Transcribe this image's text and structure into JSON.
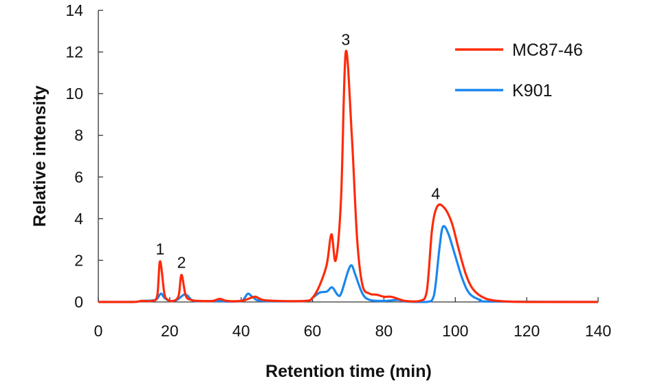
{
  "chart_data": {
    "type": "line",
    "title": "",
    "xlabel": "Retention time (min)",
    "ylabel": "Relative intensity",
    "xlim": [
      0,
      140
    ],
    "ylim": [
      0,
      14
    ],
    "xticks": [
      0,
      20,
      40,
      60,
      80,
      100,
      120,
      140
    ],
    "yticks": [
      0,
      2,
      4,
      6,
      8,
      10,
      12,
      14
    ],
    "grid": false,
    "legend_position": "top-right",
    "annotations": [
      {
        "text": "1",
        "x": 17.3,
        "y": 1.95
      },
      {
        "text": "2",
        "x": 23.3,
        "y": 1.3
      },
      {
        "text": "3",
        "x": 69.3,
        "y": 12.0
      },
      {
        "text": "4",
        "x": 94.5,
        "y": 4.6
      }
    ],
    "series": [
      {
        "name": "MC87-46",
        "color": "#ff2a0a",
        "x": [
          0,
          10,
          12,
          15,
          16.5,
          17.3,
          18.5,
          19.5,
          21,
          22.5,
          23.3,
          24.5,
          26,
          28,
          32,
          34,
          36,
          40,
          42,
          44,
          46,
          50,
          58,
          60,
          62,
          64,
          65.3,
          66.5,
          68,
          69.3,
          71,
          72.5,
          74,
          76,
          78,
          80,
          82,
          84,
          86,
          90,
          92,
          93.5,
          95,
          97,
          99,
          101,
          103,
          105,
          108,
          112,
          120,
          140
        ],
        "y": [
          0,
          0,
          0.05,
          0.05,
          0.3,
          1.95,
          0.4,
          0.1,
          0.05,
          0.3,
          1.3,
          0.3,
          0.1,
          0.05,
          0.05,
          0.15,
          0.05,
          0.05,
          0.15,
          0.25,
          0.1,
          0.05,
          0.05,
          0.2,
          0.8,
          1.8,
          3.25,
          2.0,
          5.0,
          12.0,
          8.0,
          3.0,
          0.8,
          0.4,
          0.35,
          0.25,
          0.25,
          0.15,
          0.05,
          0.05,
          0.5,
          3.5,
          4.6,
          4.5,
          3.8,
          2.5,
          1.3,
          0.6,
          0.2,
          0.05,
          0,
          0
        ]
      },
      {
        "name": "K901",
        "color": "#1a86ee",
        "x": [
          0,
          10,
          12,
          16,
          17.5,
          18.5,
          20,
          22,
          24,
          25,
          27,
          34,
          36,
          40,
          41,
          42,
          43.5,
          46,
          58,
          60,
          62,
          64,
          65.5,
          67,
          68,
          70,
          71,
          72,
          74,
          76,
          80,
          84,
          86,
          92,
          94,
          95.5,
          96.5,
          98,
          100,
          102,
          104,
          107,
          110,
          140
        ],
        "y": [
          0,
          0,
          0.05,
          0.1,
          0.4,
          0.2,
          0.05,
          0.1,
          0.35,
          0.3,
          0.05,
          0.05,
          0.02,
          0.05,
          0.2,
          0.4,
          0.2,
          0.05,
          0.05,
          0.2,
          0.45,
          0.5,
          0.7,
          0.35,
          0.4,
          1.5,
          1.75,
          1.3,
          0.4,
          0.1,
          0.05,
          0.1,
          0.02,
          0,
          0.3,
          2.5,
          3.6,
          3.3,
          2.2,
          1.1,
          0.4,
          0.1,
          0.02,
          0
        ]
      }
    ]
  }
}
